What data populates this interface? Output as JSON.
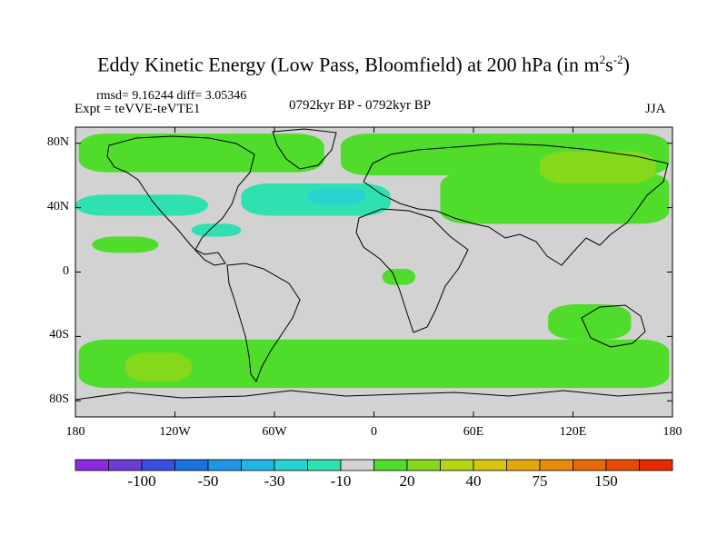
{
  "title": {
    "main": "Eddy Kinetic Energy (Low Pass, Bloomfield) at 200 hPa (in m",
    "sup1": "2",
    "mid": "s",
    "sup2": "-2",
    "end": ")"
  },
  "stats": "rmsd= 9.16244 diff= 3.05346",
  "expt": "Expt = teVVE-teVTE1",
  "period": "0792kyr BP - 0792kyr BP",
  "season": "JJA",
  "lat_ticks": [
    {
      "label": "80N",
      "value": 80
    },
    {
      "label": "40N",
      "value": 40
    },
    {
      "label": "0",
      "value": 0
    },
    {
      "label": "40S",
      "value": -40
    },
    {
      "label": "80S",
      "value": -80
    }
  ],
  "lon_ticks": [
    {
      "label": "180",
      "value": -180
    },
    {
      "label": "120W",
      "value": -120
    },
    {
      "label": "60W",
      "value": -60
    },
    {
      "label": "0",
      "value": 0
    },
    {
      "label": "60E",
      "value": 60
    },
    {
      "label": "120E",
      "value": 120
    },
    {
      "label": "180",
      "value": 180
    }
  ],
  "colorbar": {
    "colors": [
      "#8a2be2",
      "#6a3dd6",
      "#3a4ee0",
      "#1e6fe0",
      "#1f95e3",
      "#21b6e6",
      "#27d2d0",
      "#2fe0b0",
      "#d2d2d2",
      "#4fdc2a",
      "#86d81a",
      "#b4d414",
      "#d6c40e",
      "#e2a80a",
      "#e68a08",
      "#e66a06",
      "#e64a04",
      "#e62a02"
    ],
    "labels": [
      {
        "text": "-100",
        "boundary": 2
      },
      {
        "text": "-50",
        "boundary": 4
      },
      {
        "text": "-30",
        "boundary": 6
      },
      {
        "text": "-10",
        "boundary": 8
      },
      {
        "text": "20",
        "boundary": 10
      },
      {
        "text": "40",
        "boundary": 12
      },
      {
        "text": "75",
        "boundary": 14
      },
      {
        "text": "150",
        "boundary": 16
      }
    ]
  },
  "colors": {
    "background": "#d2d2d2",
    "positive_light": "#4fdc2a",
    "positive_mid": "#86d81a",
    "negative_light": "#2fe0b0",
    "negative_mid": "#27d2d0"
  },
  "field_regions": [
    {
      "level": "positive_light",
      "lon": [
        -178,
        -30
      ],
      "lat": [
        62,
        86
      ]
    },
    {
      "level": "positive_light",
      "lon": [
        -20,
        178
      ],
      "lat": [
        60,
        86
      ]
    },
    {
      "level": "positive_light",
      "lon": [
        40,
        178
      ],
      "lat": [
        30,
        62
      ]
    },
    {
      "level": "positive_mid",
      "lon": [
        100,
        170
      ],
      "lat": [
        55,
        75
      ]
    },
    {
      "level": "positive_light",
      "lon": [
        -170,
        -130
      ],
      "lat": [
        12,
        22
      ]
    },
    {
      "level": "positive_light",
      "lon": [
        5,
        25
      ],
      "lat": [
        -8,
        2
      ]
    },
    {
      "level": "positive_light",
      "lon": [
        -178,
        178
      ],
      "lat": [
        -72,
        -42
      ]
    },
    {
      "level": "positive_mid",
      "lon": [
        -150,
        -110
      ],
      "lat": [
        -68,
        -50
      ]
    },
    {
      "level": "positive_light",
      "lon": [
        105,
        155
      ],
      "lat": [
        -42,
        -20
      ]
    },
    {
      "level": "negative_light",
      "lon": [
        -180,
        -100
      ],
      "lat": [
        35,
        48
      ]
    },
    {
      "level": "negative_light",
      "lon": [
        -80,
        10
      ],
      "lat": [
        35,
        55
      ]
    },
    {
      "level": "negative_mid",
      "lon": [
        -40,
        -5
      ],
      "lat": [
        42,
        52
      ]
    },
    {
      "level": "negative_light",
      "lon": [
        -110,
        -80
      ],
      "lat": [
        22,
        30
      ]
    }
  ]
}
